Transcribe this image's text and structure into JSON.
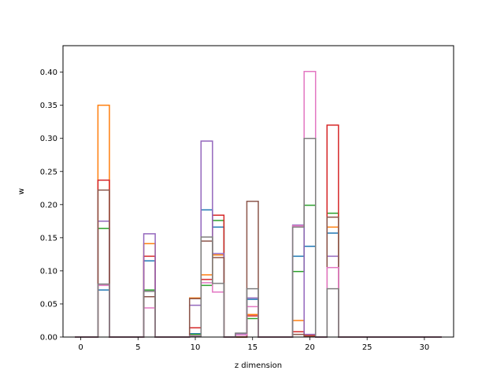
{
  "chart_data": {
    "type": "step",
    "title": "",
    "xlabel": "z dimension",
    "ylabel": "w",
    "xlim": [
      -1.55,
      32.55
    ],
    "ylim": [
      0,
      0.44
    ],
    "x_ticks": [
      0,
      5,
      10,
      15,
      20,
      25,
      30
    ],
    "x_tick_labels": [
      "0",
      "5",
      "10",
      "15",
      "20",
      "25",
      "30"
    ],
    "y_ticks": [
      0.0,
      0.05,
      0.1,
      0.15,
      0.2,
      0.25,
      0.3,
      0.35,
      0.4
    ],
    "y_tick_labels": [
      "0.00",
      "0.05",
      "0.10",
      "0.15",
      "0.20",
      "0.25",
      "0.30",
      "0.35",
      "0.40"
    ],
    "x": [
      0,
      1,
      2,
      3,
      4,
      5,
      6,
      7,
      8,
      9,
      10,
      11,
      12,
      13,
      14,
      15,
      16,
      17,
      18,
      19,
      20,
      21,
      22,
      23,
      24,
      25,
      26,
      27,
      28,
      29,
      30,
      31
    ],
    "bin_width": 1,
    "grid": false,
    "legend": "none",
    "series": [
      {
        "color": "#1f77b4",
        "values": [
          0,
          0,
          0.071,
          0,
          0,
          0,
          0.115,
          0,
          0,
          0,
          0.005,
          0.192,
          0.166,
          0,
          0,
          0.057,
          0,
          0,
          0,
          0.122,
          0.137,
          0,
          0.157,
          0,
          0,
          0,
          0,
          0,
          0,
          0,
          0,
          0
        ]
      },
      {
        "color": "#ff7f0e",
        "values": [
          0,
          0,
          0.35,
          0,
          0,
          0,
          0.141,
          0,
          0,
          0,
          0.059,
          0.094,
          0.124,
          0,
          0,
          0.034,
          0,
          0,
          0,
          0.025,
          0.003,
          0,
          0.166,
          0,
          0,
          0,
          0,
          0,
          0,
          0,
          0,
          0
        ]
      },
      {
        "color": "#2ca02c",
        "values": [
          0,
          0,
          0.164,
          0,
          0,
          0,
          0.071,
          0,
          0,
          0,
          0.004,
          0.078,
          0.176,
          0,
          0,
          0.028,
          0,
          0,
          0,
          0.099,
          0.199,
          0,
          0.187,
          0,
          0,
          0,
          0,
          0,
          0,
          0,
          0,
          0
        ]
      },
      {
        "color": "#d62728",
        "values": [
          0,
          0,
          0.237,
          0,
          0,
          0,
          0.122,
          0,
          0,
          0,
          0.014,
          0.087,
          0.184,
          0,
          0,
          0.032,
          0,
          0,
          0,
          0.008,
          0.002,
          0,
          0.32,
          0,
          0,
          0,
          0,
          0,
          0,
          0,
          0,
          0
        ]
      },
      {
        "color": "#9467bd",
        "values": [
          0,
          0,
          0.175,
          0,
          0,
          0,
          0.156,
          0,
          0,
          0,
          0.048,
          0.296,
          0.126,
          0,
          0.005,
          0.059,
          0,
          0,
          0,
          0.169,
          0.004,
          0,
          0.122,
          0,
          0,
          0,
          0,
          0,
          0,
          0,
          0,
          0
        ]
      },
      {
        "color": "#8c564b",
        "values": [
          0,
          0,
          0.222,
          0,
          0,
          0,
          0.061,
          0,
          0,
          0,
          0.058,
          0.145,
          0.12,
          0,
          0,
          0.205,
          0,
          0,
          0,
          0.004,
          0.001,
          0,
          0.181,
          0,
          0,
          0,
          0,
          0,
          0,
          0,
          0,
          0
        ]
      },
      {
        "color": "#e377c2",
        "values": [
          0,
          0,
          0.078,
          0,
          0,
          0,
          0.044,
          0,
          0,
          0,
          0.002,
          0.082,
          0.068,
          0,
          0.003,
          0.046,
          0,
          0,
          0,
          0.168,
          0.401,
          0,
          0.105,
          0,
          0,
          0,
          0,
          0,
          0,
          0,
          0,
          0
        ]
      },
      {
        "color": "#7f7f7f",
        "values": [
          0,
          0,
          0.08,
          0,
          0,
          0,
          0.069,
          0,
          0,
          0,
          0.001,
          0.151,
          0.081,
          0,
          0.006,
          0.073,
          0,
          0,
          0,
          0.166,
          0.3,
          0,
          0.073,
          0,
          0,
          0,
          0,
          0,
          0,
          0,
          0,
          0
        ]
      }
    ]
  }
}
